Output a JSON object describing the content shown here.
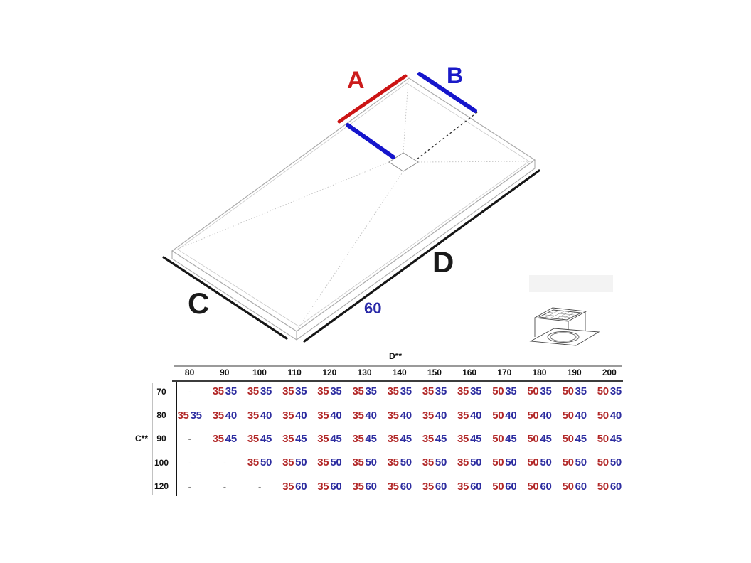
{
  "diagram": {
    "label_a": "A",
    "label_b": "B",
    "label_c": "C",
    "label_d": "D",
    "drain_offset_label": "60",
    "drain_icon": "drain-exploded-icon",
    "colors": {
      "red_line": "#cc1414",
      "blue_line": "#1515cc",
      "black_line": "#161616",
      "label_red": "#cc1c1c",
      "label_blue": "#1a1ac8",
      "label_black": "#1a1a1a",
      "label_offset_blue": "#2a2aa8",
      "outline_gray": "#ababab",
      "slope_gray": "#c0c0c0"
    }
  },
  "table": {
    "column_axis_label": "D**",
    "row_axis_label": "C**",
    "empty_cell": "-",
    "value_colors": {
      "first": "#b22828",
      "second": "#2d2da0",
      "dash": "#888888"
    },
    "columns": [
      "80",
      "90",
      "100",
      "110",
      "120",
      "130",
      "140",
      "150",
      "160",
      "170",
      "180",
      "190",
      "200"
    ],
    "rows": [
      {
        "label": "70",
        "cells": [
          null,
          [
            "35",
            "35"
          ],
          [
            "35",
            "35"
          ],
          [
            "35",
            "35"
          ],
          [
            "35",
            "35"
          ],
          [
            "35",
            "35"
          ],
          [
            "35",
            "35"
          ],
          [
            "35",
            "35"
          ],
          [
            "35",
            "35"
          ],
          [
            "50",
            "35"
          ],
          [
            "50",
            "35"
          ],
          [
            "50",
            "35"
          ],
          [
            "50",
            "35"
          ]
        ]
      },
      {
        "label": "80",
        "cells": [
          [
            "35",
            "35"
          ],
          [
            "35",
            "40"
          ],
          [
            "35",
            "40"
          ],
          [
            "35",
            "40"
          ],
          [
            "35",
            "40"
          ],
          [
            "35",
            "40"
          ],
          [
            "35",
            "40"
          ],
          [
            "35",
            "40"
          ],
          [
            "35",
            "40"
          ],
          [
            "50",
            "40"
          ],
          [
            "50",
            "40"
          ],
          [
            "50",
            "40"
          ],
          [
            "50",
            "40"
          ]
        ]
      },
      {
        "label": "90",
        "cells": [
          null,
          [
            "35",
            "45"
          ],
          [
            "35",
            "45"
          ],
          [
            "35",
            "45"
          ],
          [
            "35",
            "45"
          ],
          [
            "35",
            "45"
          ],
          [
            "35",
            "45"
          ],
          [
            "35",
            "45"
          ],
          [
            "35",
            "45"
          ],
          [
            "50",
            "45"
          ],
          [
            "50",
            "45"
          ],
          [
            "50",
            "45"
          ],
          [
            "50",
            "45"
          ]
        ]
      },
      {
        "label": "100",
        "cells": [
          null,
          null,
          [
            "35",
            "50"
          ],
          [
            "35",
            "50"
          ],
          [
            "35",
            "50"
          ],
          [
            "35",
            "50"
          ],
          [
            "35",
            "50"
          ],
          [
            "35",
            "50"
          ],
          [
            "35",
            "50"
          ],
          [
            "50",
            "50"
          ],
          [
            "50",
            "50"
          ],
          [
            "50",
            "50"
          ],
          [
            "50",
            "50"
          ]
        ]
      },
      {
        "label": "120",
        "cells": [
          null,
          null,
          null,
          [
            "35",
            "60"
          ],
          [
            "35",
            "60"
          ],
          [
            "35",
            "60"
          ],
          [
            "35",
            "60"
          ],
          [
            "35",
            "60"
          ],
          [
            "35",
            "60"
          ],
          [
            "50",
            "60"
          ],
          [
            "50",
            "60"
          ],
          [
            "50",
            "60"
          ],
          [
            "50",
            "60"
          ]
        ]
      }
    ]
  }
}
